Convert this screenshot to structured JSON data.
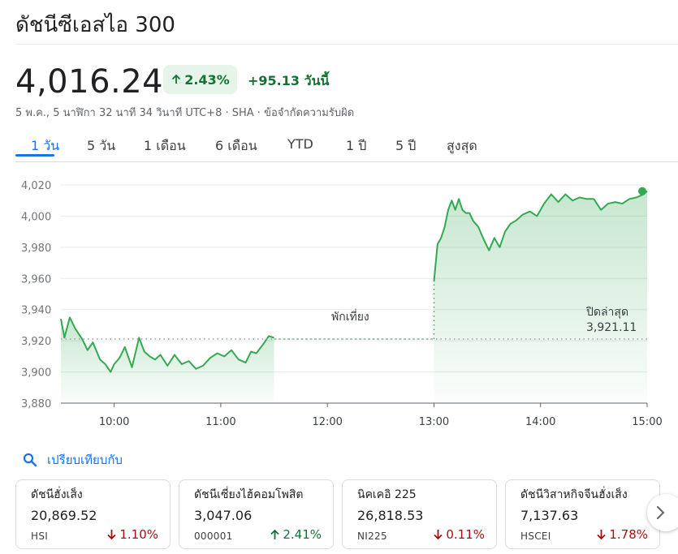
{
  "header": {
    "title": "ดัชนีซีเอสไอ 300"
  },
  "quote": {
    "price": "4,016.24",
    "percent_change": "2.43%",
    "abs_change": "+95.13 วันนี้",
    "meta": "5 พ.ค., 5 นาฬิกา 32 นาที 34 วินาที UTC+8 · SHA · ข้อจำกัดความรับผิด"
  },
  "tabs": [
    {
      "label": "1 วัน",
      "active": true
    },
    {
      "label": "5 วัน"
    },
    {
      "label": "1 เดือน"
    },
    {
      "label": "6 เดือน"
    },
    {
      "label": "YTD"
    },
    {
      "label": "1 ปี"
    },
    {
      "label": "5 ปี"
    },
    {
      "label": "สูงสุด"
    }
  ],
  "chart_data": {
    "type": "area",
    "y_ticks": [
      "4,020",
      "4,000",
      "3,980",
      "3,960",
      "3,940",
      "3,920",
      "3,900",
      "3,880"
    ],
    "x_ticks": [
      "10:00",
      "11:00",
      "12:00",
      "13:00",
      "14:00",
      "15:00"
    ],
    "ylim": [
      3880,
      4020
    ],
    "previous_close": 3921.11,
    "previous_close_label": "ปิดล่าสุด",
    "previous_close_value": "3,921.11",
    "lunch_break_label": "พักเที่ยง",
    "colors": {
      "line": "#34a853",
      "fill": "#e6f4ea",
      "grid": "#e8eaed"
    },
    "morning_session": {
      "x": [
        "09:30",
        "09:32",
        "09:35",
        "09:38",
        "09:42",
        "09:45",
        "09:48",
        "09:52",
        "09:55",
        "09:58",
        "10:00",
        "10:03",
        "10:06",
        "10:10",
        "10:14",
        "10:17",
        "10:20",
        "10:23",
        "10:26",
        "10:30",
        "10:34",
        "10:38",
        "10:42",
        "10:46",
        "10:50",
        "10:54",
        "10:58",
        "11:02",
        "11:06",
        "11:10",
        "11:14",
        "11:17",
        "11:20",
        "11:24",
        "11:27",
        "11:30"
      ],
      "y": [
        3934,
        3922,
        3935,
        3928,
        3921,
        3914,
        3919,
        3908,
        3905,
        3900,
        3905,
        3909,
        3916,
        3903,
        3922,
        3913,
        3910,
        3908,
        3911,
        3904,
        3911,
        3905,
        3907,
        3902,
        3904,
        3909,
        3912,
        3910,
        3914,
        3908,
        3906,
        3913,
        3912,
        3918,
        3923,
        3922
      ]
    },
    "afternoon_session": {
      "x": [
        "13:00",
        "13:02",
        "13:04",
        "13:06",
        "13:08",
        "13:10",
        "13:12",
        "13:14",
        "13:16",
        "13:18",
        "13:20",
        "13:22",
        "13:25",
        "13:28",
        "13:31",
        "13:34",
        "13:37",
        "13:40",
        "13:43",
        "13:46",
        "13:50",
        "13:54",
        "13:58",
        "14:02",
        "14:06",
        "14:10",
        "14:14",
        "14:18",
        "14:22",
        "14:26",
        "14:30",
        "14:34",
        "14:38",
        "14:42",
        "14:46",
        "14:50",
        "14:54",
        "14:58",
        "15:00"
      ],
      "y": [
        3958,
        3982,
        3986,
        3993,
        4004,
        4010,
        4004,
        4011,
        4004,
        4002,
        4002,
        3997,
        3993,
        3985,
        3978,
        3986,
        3980,
        3990,
        3995,
        3997,
        4001,
        4003,
        4000,
        4008,
        4014,
        4009,
        4014,
        4010,
        4012,
        4011,
        4011,
        4004,
        4008,
        4009,
        4008,
        4011,
        4012,
        4014,
        4016
      ]
    }
  },
  "compare": {
    "label": "เปรียบเทียบกับ"
  },
  "related": [
    {
      "name": "ดัชนีฮั่งเส็ง",
      "value": "20,869.52",
      "symbol": "HSI",
      "change": "1.10%",
      "direction": "down"
    },
    {
      "name": "ดัชนีเซี่ยงไฮ้คอมโพสิต",
      "value": "3,047.06",
      "symbol": "000001",
      "change": "2.41%",
      "direction": "up"
    },
    {
      "name": "นิคเคอิ 225",
      "value": "26,818.53",
      "symbol": "NI225",
      "change": "0.11%",
      "direction": "down"
    },
    {
      "name": "ดัชนีวิสาหกิจจีนฮั่งเส็ง",
      "value": "7,137.63",
      "symbol": "HSCEI",
      "change": "1.78%",
      "direction": "down"
    }
  ]
}
